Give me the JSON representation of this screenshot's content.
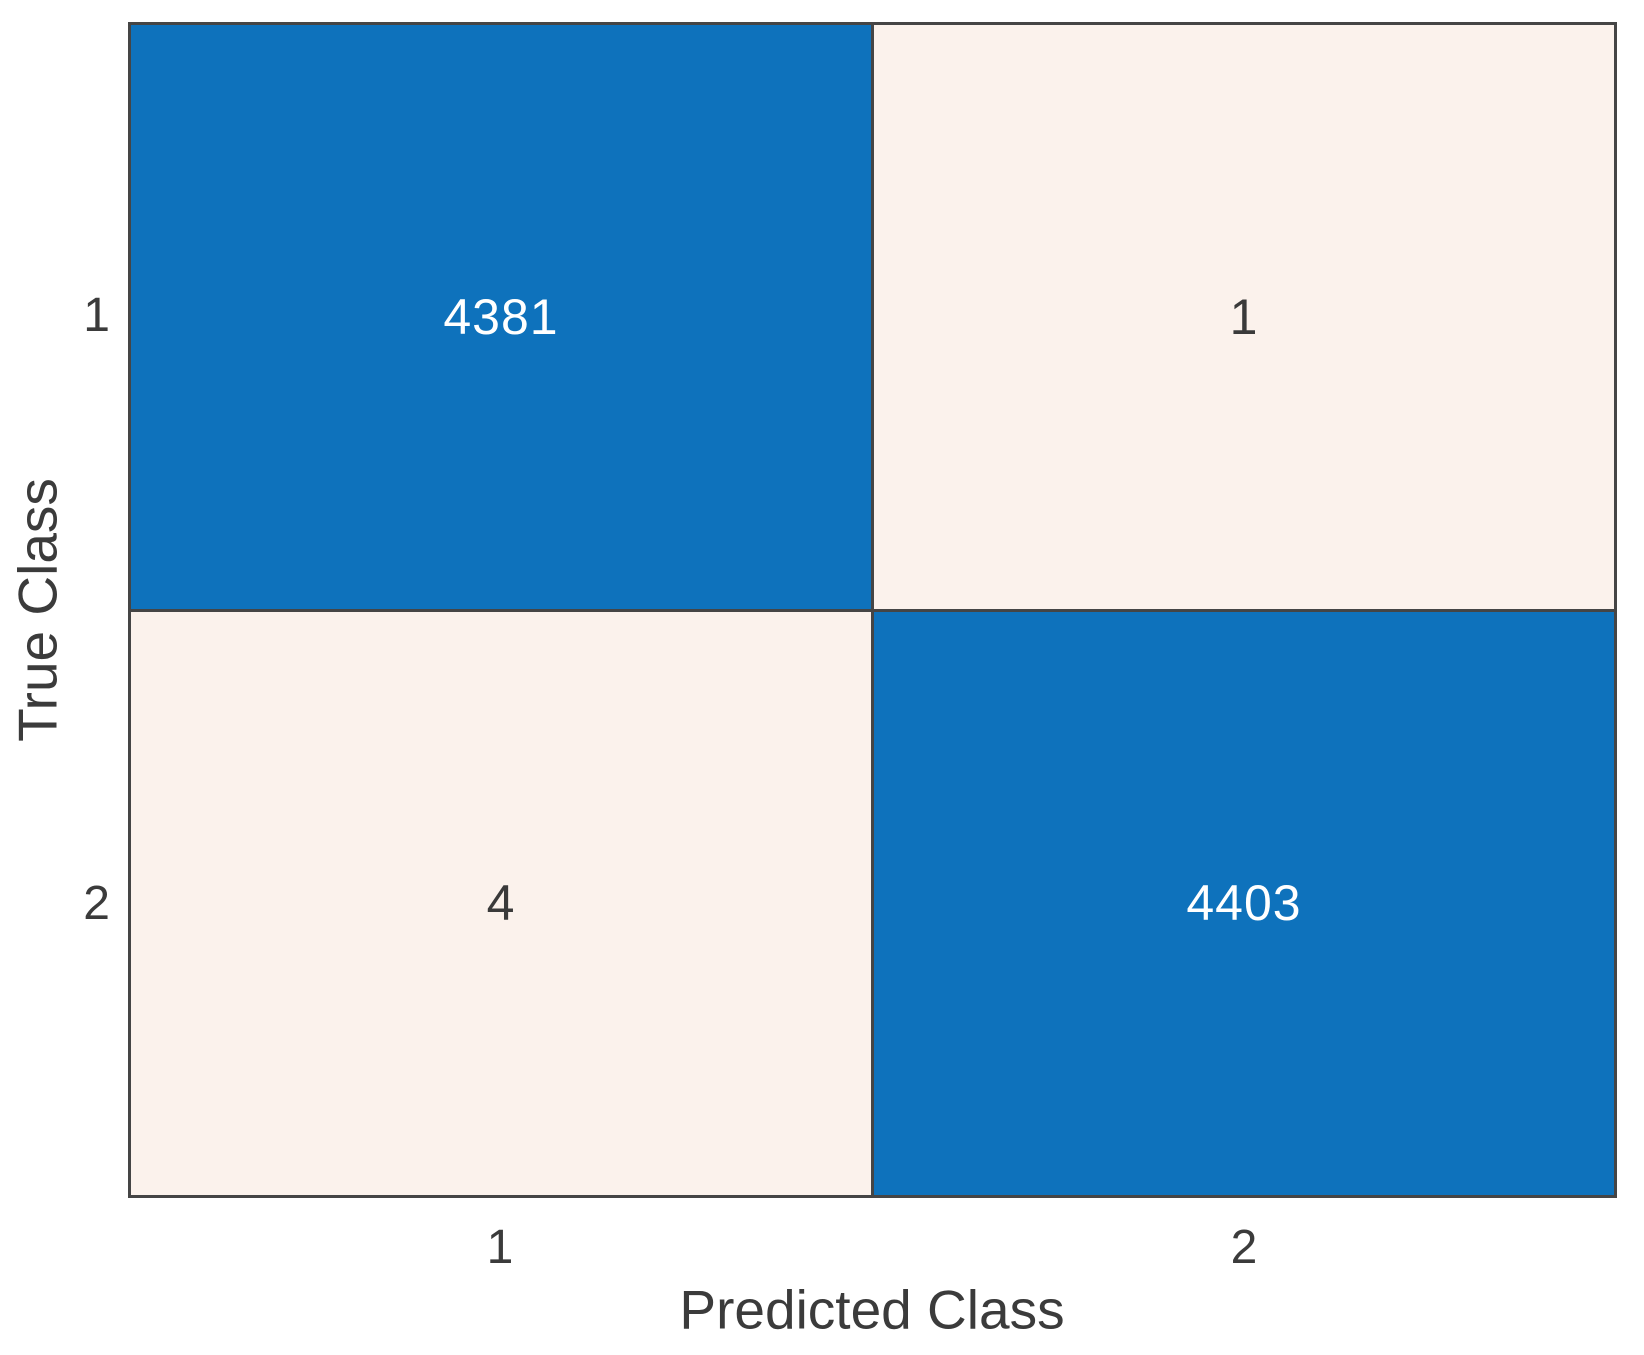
{
  "chart_data": {
    "type": "heatmap",
    "subtype": "confusion-matrix",
    "title": "",
    "xlabel": "Predicted Class",
    "ylabel": "True Class",
    "x_tick_labels": [
      "1",
      "2"
    ],
    "y_tick_labels": [
      "1",
      "2"
    ],
    "matrix": [
      [
        4381,
        1
      ],
      [
        4,
        4403
      ]
    ],
    "cell_text": [
      [
        "4381",
        "1"
      ],
      [
        "4",
        "4403"
      ]
    ],
    "legend": false,
    "grid": true,
    "colors": {
      "diagonal_cell": "#0e72bc",
      "off_diagonal_cell": "#fbf2ec",
      "grid_line": "#454545",
      "text_on_diagonal": "#ffffff",
      "text_on_off_diagonal": "#3a3a3a",
      "axis_text": "#3b3b3b"
    }
  }
}
